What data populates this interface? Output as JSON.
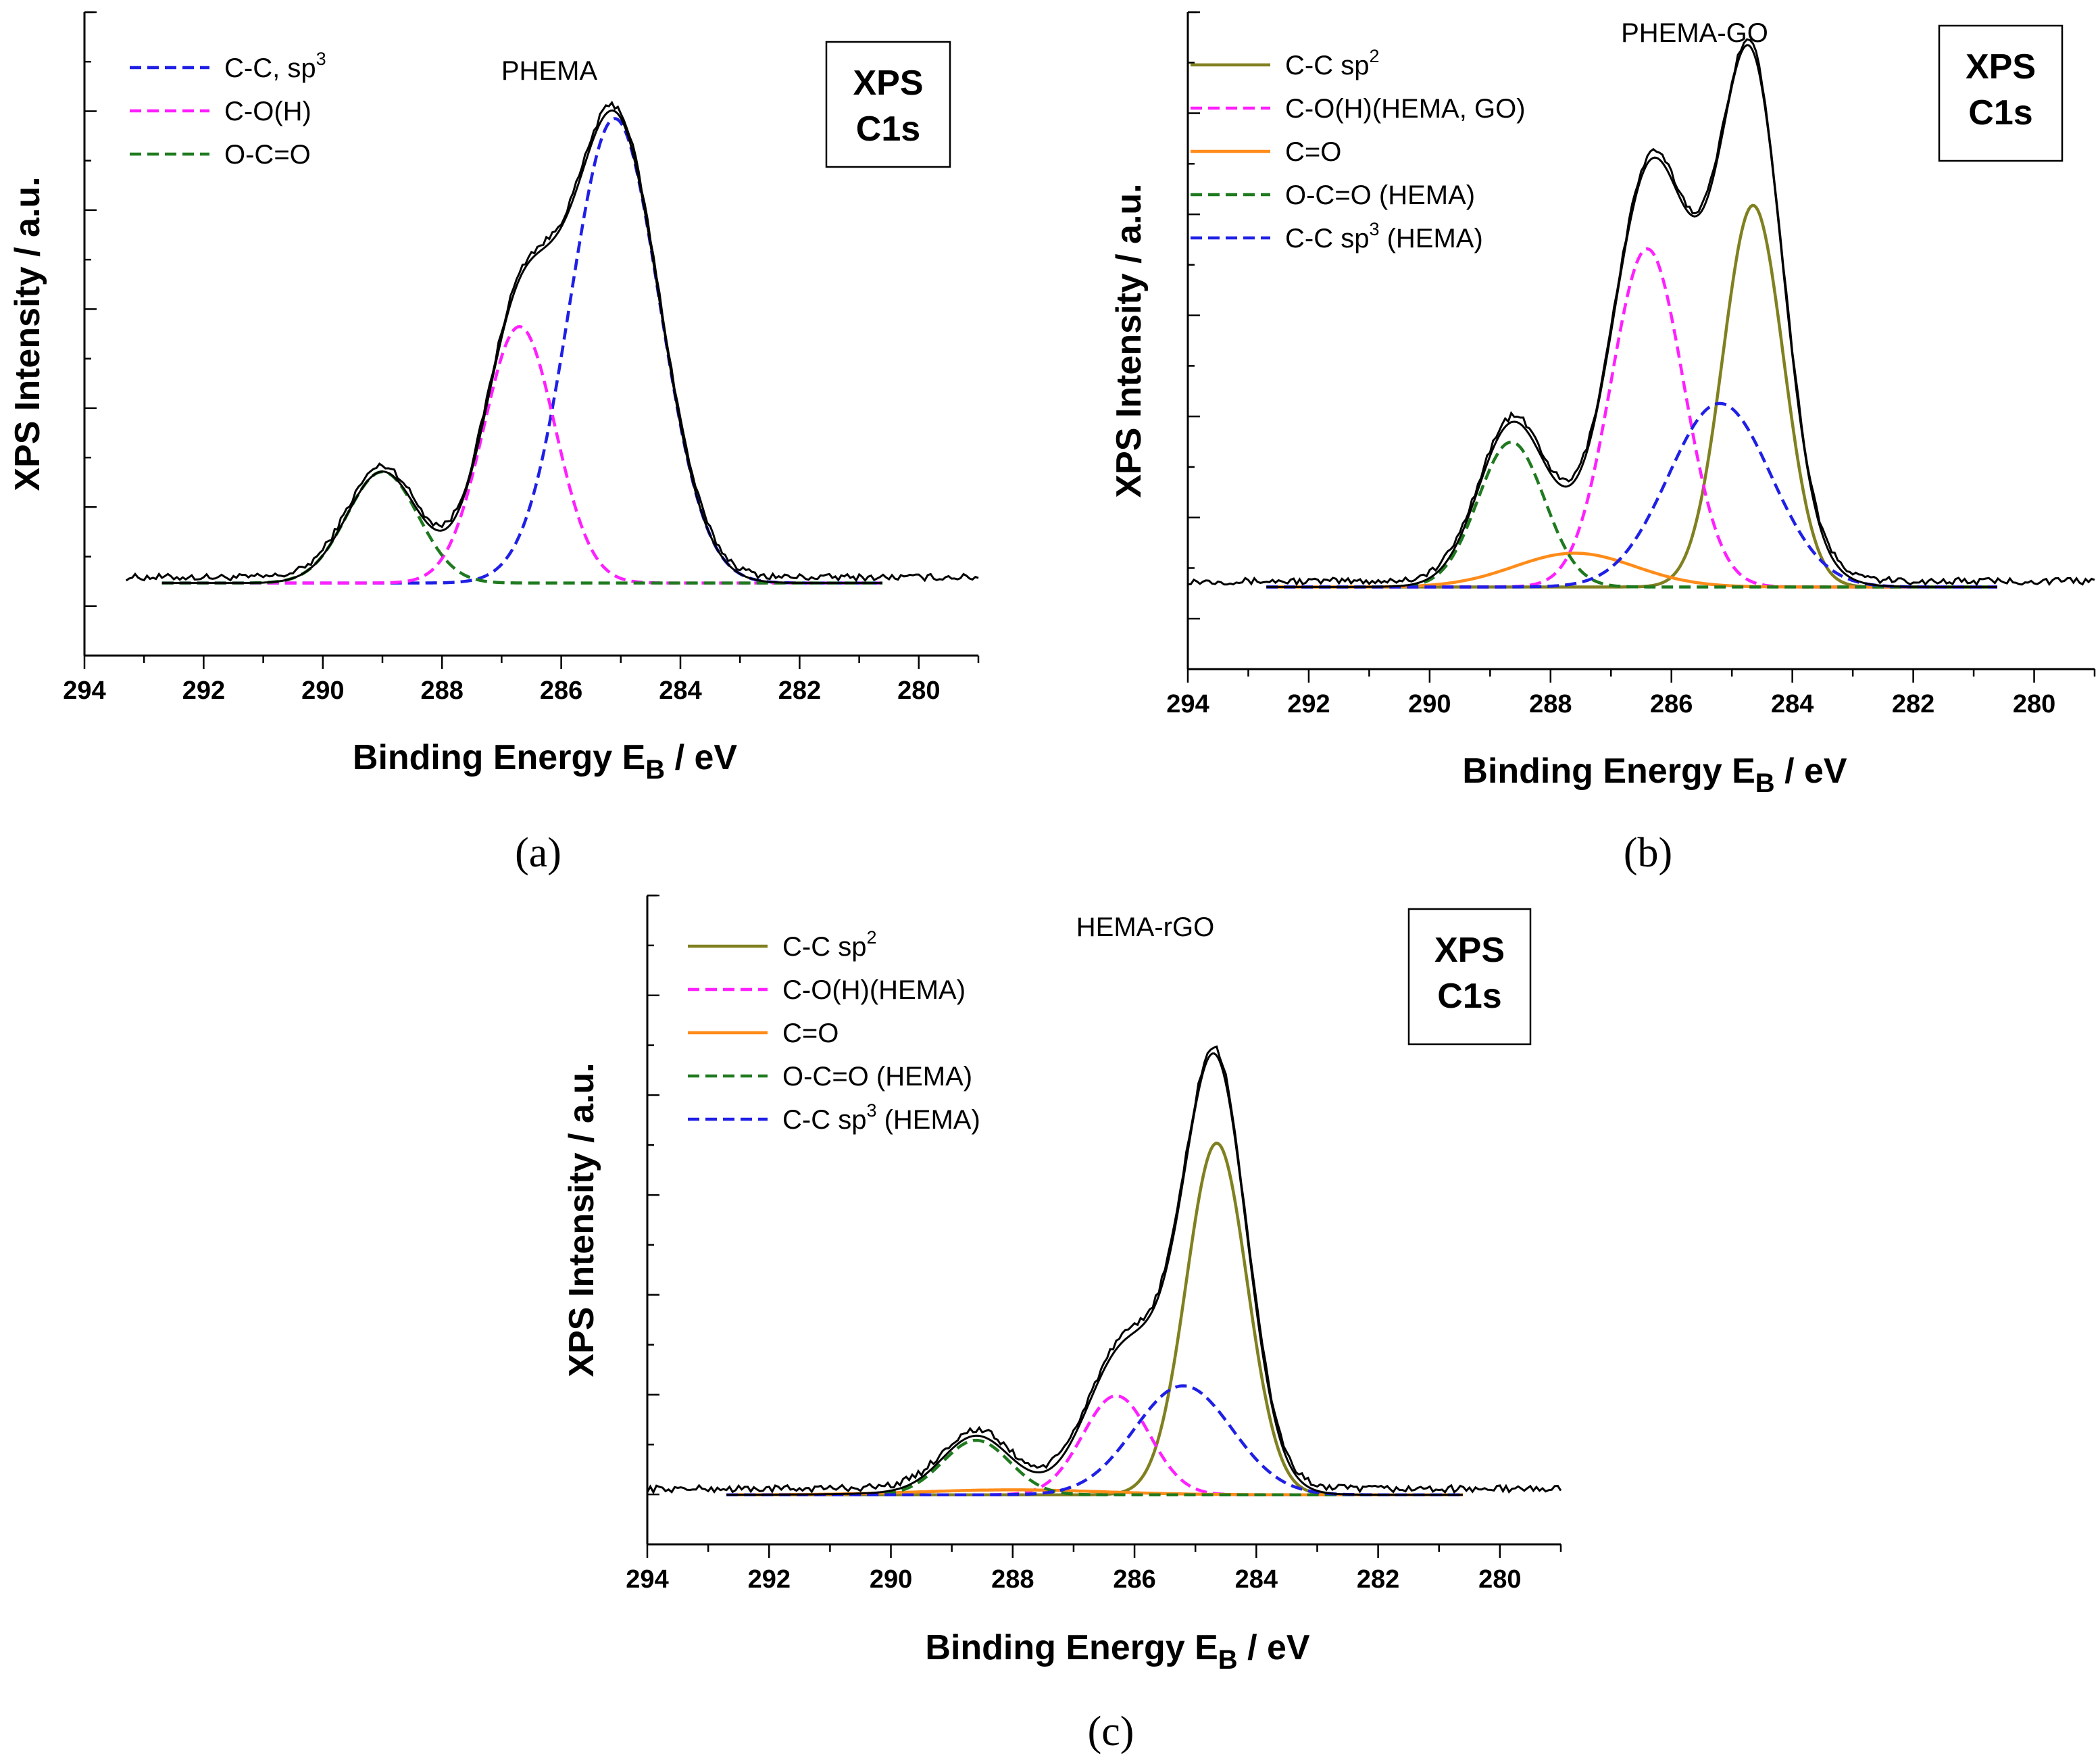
{
  "chart_data": [
    {
      "panel": "(a)",
      "type": "line",
      "sample": "PHEMA",
      "box_text": [
        "XPS",
        "C1s"
      ],
      "xlabel": "Binding Energy  E",
      "xlabel_sub": "B",
      "xlabel_unit": " / eV",
      "ylabel": "XPS Intensity / a.u.",
      "xlim": [
        294,
        279
      ],
      "ylim": [
        -0.15,
        1.18
      ],
      "xticks": [
        294,
        292,
        290,
        288,
        286,
        284,
        282,
        280
      ],
      "grid": false,
      "legend_position": "top-left",
      "legend": [
        {
          "label": "C-C, sp",
          "sup": "3",
          "color": "#1f1fe6",
          "dash": "dashed"
        },
        {
          "label": "C-O(H)",
          "sup": "",
          "color": "#ff1fff",
          "dash": "dashed"
        },
        {
          "label": "O-C=O",
          "sup": "",
          "color": "#1f7a1f",
          "dash": "dashed"
        }
      ],
      "baseline": 0.0,
      "components": [
        {
          "name": "C-C, sp3",
          "color": "#1f1fe6",
          "dash": "dashed",
          "center": 285.1,
          "amplitude": 0.96,
          "sigma": 0.75
        },
        {
          "name": "C-O(H)",
          "color": "#ff1fff",
          "dash": "dashed",
          "center": 286.7,
          "amplitude": 0.53,
          "sigma": 0.6
        },
        {
          "name": "O-C=O",
          "color": "#1f7a1f",
          "dash": "dashed",
          "center": 289.0,
          "amplitude": 0.23,
          "sigma": 0.6
        }
      ],
      "envelope": {
        "color": "#000000"
      },
      "raw": {
        "color": "#000000",
        "range": [
          293.3,
          279.0
        ]
      }
    },
    {
      "panel": "(b)",
      "type": "line",
      "sample": "PHEMA-GO",
      "box_text": [
        "XPS",
        "C1s"
      ],
      "xlabel": "Binding Energy  E",
      "xlabel_sub": "B",
      "xlabel_unit": " / eV",
      "ylabel": "XPS Intensity / a.u.",
      "xlim": [
        294,
        279
      ],
      "ylim": [
        -0.17,
        1.19
      ],
      "xticks": [
        294,
        292,
        290,
        288,
        286,
        284,
        282,
        280
      ],
      "grid": false,
      "legend_position": "top-left",
      "legend": [
        {
          "label": "C-C sp",
          "sup": "2",
          "color": "#808020",
          "dash": "solid"
        },
        {
          "label": "C-O(H)(HEMA, GO)",
          "sup": "",
          "color": "#ff1fff",
          "dash": "dashed"
        },
        {
          "label": "C=O",
          "sup": "",
          "color": "#ff8c1a",
          "dash": "solid"
        },
        {
          "label": "O-C=O (HEMA)",
          "sup": "",
          "color": "#1f7a1f",
          "dash": "dashed"
        },
        {
          "label": "C-C sp",
          "sup": "3",
          "label_tail": " (HEMA)",
          "color": "#1f1fe6",
          "dash": "dashed"
        }
      ],
      "baseline": 0.0,
      "components": [
        {
          "name": "C-C sp2",
          "color": "#808020",
          "dash": "solid",
          "center": 284.65,
          "amplitude": 0.79,
          "sigma": 0.5
        },
        {
          "name": "C-O(H)(HEMA, GO)",
          "color": "#ff1fff",
          "dash": "dashed",
          "center": 286.4,
          "amplitude": 0.7,
          "sigma": 0.6
        },
        {
          "name": "C=O",
          "color": "#ff8c1a",
          "dash": "solid",
          "center": 287.6,
          "amplitude": 0.07,
          "sigma": 1.0
        },
        {
          "name": "O-C=O (HEMA)",
          "color": "#1f7a1f",
          "dash": "dashed",
          "center": 288.65,
          "amplitude": 0.3,
          "sigma": 0.55
        },
        {
          "name": "C-C sp3 (HEMA)",
          "color": "#1f1fe6",
          "dash": "dashed",
          "center": 285.2,
          "amplitude": 0.38,
          "sigma": 0.85
        }
      ],
      "envelope": {
        "color": "#000000"
      },
      "raw": {
        "color": "#000000",
        "range": [
          294.0,
          279.0
        ]
      }
    },
    {
      "panel": "(c)",
      "type": "line",
      "sample": "HEMA-rGO",
      "box_text": [
        "XPS",
        "C1s"
      ],
      "xlabel": "Binding Energy  E",
      "xlabel_sub": "B",
      "xlabel_unit": " / eV",
      "ylabel": "XPS Intensity / a.u.",
      "xlim": [
        294,
        279
      ],
      "ylim": [
        -0.1,
        1.21
      ],
      "xticks": [
        294,
        292,
        290,
        288,
        286,
        284,
        282,
        280
      ],
      "grid": false,
      "legend_position": "top-left",
      "legend": [
        {
          "label": "C-C sp",
          "sup": "2",
          "color": "#808020",
          "dash": "solid"
        },
        {
          "label": "C-O(H)(HEMA)",
          "sup": "",
          "color": "#ff1fff",
          "dash": "dashed"
        },
        {
          "label": "C=O",
          "sup": "",
          "color": "#ff8c1a",
          "dash": "solid"
        },
        {
          "label": "O-C=O (HEMA)",
          "sup": "",
          "color": "#1f7a1f",
          "dash": "dashed"
        },
        {
          "label": "C-C sp",
          "sup": "3",
          "label_tail": " (HEMA)",
          "color": "#1f1fe6",
          "dash": "dashed"
        }
      ],
      "baseline": 0.0,
      "components": [
        {
          "name": "C-C sp2",
          "color": "#808020",
          "dash": "solid",
          "center": 284.65,
          "amplitude": 0.71,
          "sigma": 0.5
        },
        {
          "name": "C-O(H)(HEMA)",
          "color": "#ff1fff",
          "dash": "dashed",
          "center": 286.3,
          "amplitude": 0.2,
          "sigma": 0.55
        },
        {
          "name": "C=O",
          "color": "#ff8c1a",
          "dash": "solid",
          "center": 288.0,
          "amplitude": 0.01,
          "sigma": 1.5
        },
        {
          "name": "O-C=O (HEMA)",
          "color": "#1f7a1f",
          "dash": "dashed",
          "center": 288.6,
          "amplitude": 0.11,
          "sigma": 0.55
        },
        {
          "name": "C-C sp3 (HEMA)",
          "color": "#1f1fe6",
          "dash": "dashed",
          "center": 285.2,
          "amplitude": 0.22,
          "sigma": 0.8
        }
      ],
      "envelope": {
        "color": "#000000"
      },
      "raw": {
        "color": "#000000",
        "range": [
          294.0,
          279.0
        ]
      }
    }
  ]
}
